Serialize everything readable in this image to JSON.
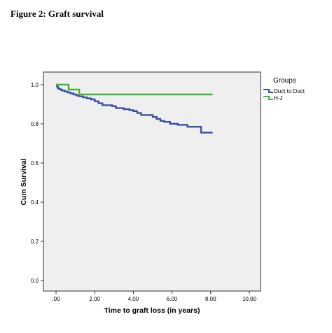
{
  "figure": {
    "title": "Figure 2: Graft survival"
  },
  "chart_data": {
    "type": "line",
    "title": "",
    "xlabel": "Time to graft loss (in years)",
    "ylabel": "Cum Survival",
    "xlim": [
      0,
      10
    ],
    "ylim": [
      0,
      1
    ],
    "x_ticks": [
      ".00",
      "2.00",
      "4.00",
      "6.00",
      "8.00",
      "10.00"
    ],
    "y_ticks": [
      "0.0",
      "0.2",
      "0.4",
      "0.6",
      "0.8",
      "1.0"
    ],
    "legend_title": "Groups",
    "legend_position": "right",
    "series": [
      {
        "name": "Duct to Duct",
        "color": "#3a4fa3",
        "step": true,
        "points": [
          [
            0,
            1.0
          ],
          [
            0.05,
            0.99
          ],
          [
            0.1,
            0.98
          ],
          [
            0.2,
            0.975
          ],
          [
            0.3,
            0.97
          ],
          [
            0.45,
            0.965
          ],
          [
            0.6,
            0.96
          ],
          [
            0.75,
            0.955
          ],
          [
            0.9,
            0.95
          ],
          [
            1.05,
            0.945
          ],
          [
            1.2,
            0.94
          ],
          [
            1.4,
            0.935
          ],
          [
            1.6,
            0.93
          ],
          [
            1.8,
            0.925
          ],
          [
            2.0,
            0.915
          ],
          [
            2.2,
            0.905
          ],
          [
            2.4,
            0.895
          ],
          [
            2.9,
            0.89
          ],
          [
            3.1,
            0.88
          ],
          [
            3.5,
            0.875
          ],
          [
            3.8,
            0.87
          ],
          [
            4.0,
            0.865
          ],
          [
            4.2,
            0.855
          ],
          [
            4.4,
            0.845
          ],
          [
            5.0,
            0.835
          ],
          [
            5.2,
            0.825
          ],
          [
            5.4,
            0.815
          ],
          [
            5.6,
            0.81
          ],
          [
            5.9,
            0.8
          ],
          [
            6.3,
            0.795
          ],
          [
            6.8,
            0.785
          ],
          [
            7.5,
            0.755
          ],
          [
            8.1,
            0.755
          ]
        ]
      },
      {
        "name": "H-J",
        "color": "#3db83d",
        "step": true,
        "points": [
          [
            0,
            1.0
          ],
          [
            0.65,
            0.975
          ],
          [
            1.2,
            0.95
          ],
          [
            8.1,
            0.95
          ]
        ]
      }
    ],
    "grid": false
  }
}
